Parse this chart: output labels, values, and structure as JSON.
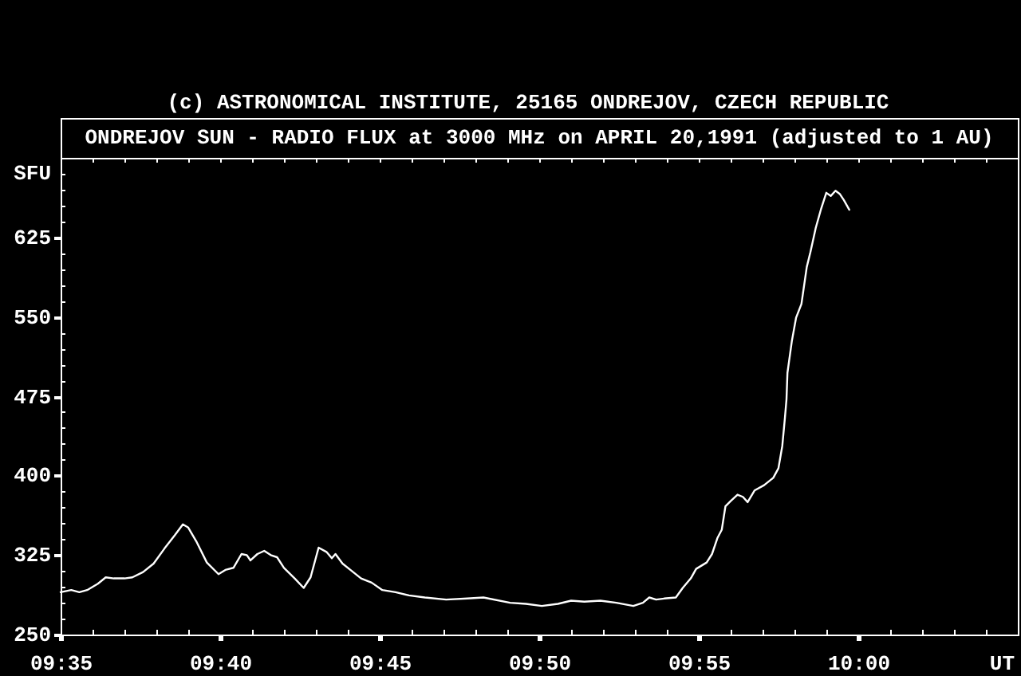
{
  "chart_data": {
    "type": "line",
    "title": "ONDREJOV SUN - RADIO FLUX at 3000 MHz on APRIL 20,1991 (adjusted to 1 AU)",
    "annotations": [
      "(c) ASTRONOMICAL INSTITUTE, 25165 ONDREJOV, CZECH REPUBLIC"
    ],
    "xlabel": "UT",
    "ylabel": "SFU",
    "color": "#ffffff",
    "x": [
      9.583333,
      9.5889,
      9.5931,
      9.5972,
      9.6028,
      9.6069,
      9.6111,
      9.6167,
      9.6208,
      9.6264,
      9.6319,
      9.6375,
      9.6431,
      9.6472,
      9.65,
      9.6542,
      9.6597,
      9.6658,
      9.6694,
      9.6736,
      9.6778,
      9.6806,
      9.6825,
      9.6861,
      9.6897,
      9.6931,
      9.6964,
      9.7,
      9.7056,
      9.7103,
      9.7139,
      9.7181,
      9.7222,
      9.725,
      9.7269,
      9.7306,
      9.7347,
      9.7403,
      9.7458,
      9.7514,
      9.7583,
      9.7653,
      9.7736,
      9.7847,
      9.7958,
      9.8042,
      9.8181,
      9.8264,
      9.8347,
      9.8431,
      9.85,
      9.8569,
      9.8653,
      9.8736,
      9.8825,
      9.8875,
      9.8908,
      9.8944,
      9.8986,
      9.9047,
      9.9083,
      9.9125,
      9.9153,
      9.9208,
      9.9236,
      9.9264,
      9.9287,
      9.9306,
      9.9333,
      9.9369,
      9.9397,
      9.9422,
      9.9458,
      9.9508,
      9.9556,
      9.9583,
      9.9603,
      9.9617,
      9.9625,
      9.963,
      9.9653,
      9.9675,
      9.9703,
      9.9731,
      9.975,
      9.9778,
      9.9806,
      9.9833,
      9.9856,
      9.9881,
      9.9903,
      9.9925,
      9.9953
    ],
    "values": [
      290,
      292,
      290,
      292,
      298,
      304,
      303,
      303,
      304,
      309,
      317,
      331,
      344,
      354,
      351,
      338,
      318,
      307,
      311,
      313,
      326,
      325,
      320,
      326,
      329,
      325,
      323,
      313,
      303,
      294,
      304,
      332,
      328,
      322,
      326,
      317,
      311,
      303,
      299,
      292,
      290,
      287,
      285,
      283,
      284,
      285,
      280,
      279,
      277,
      279,
      282,
      281,
      282,
      280,
      277,
      280,
      285,
      283,
      284,
      285,
      294,
      303,
      312,
      318,
      326,
      341,
      349,
      371,
      376,
      382,
      380,
      375,
      386,
      391,
      398,
      407,
      428,
      455,
      472,
      497,
      527,
      549,
      562,
      597,
      611,
      634,
      652,
      667,
      664,
      669,
      666,
      660,
      651
    ],
    "xlim": [
      9.583333,
      10.083333
    ],
    "xticks": [
      {
        "value": 9.583333,
        "label": "09:35"
      },
      {
        "value": 9.6,
        "label": null
      },
      {
        "value": 9.616667,
        "label": null
      },
      {
        "value": 9.633333,
        "label": null
      },
      {
        "value": 9.65,
        "label": null
      },
      {
        "value": 9.666667,
        "label": "09:40"
      },
      {
        "value": 9.683333,
        "label": null
      },
      {
        "value": 9.7,
        "label": null
      },
      {
        "value": 9.716667,
        "label": null
      },
      {
        "value": 9.733333,
        "label": null
      },
      {
        "value": 9.75,
        "label": "09:45"
      },
      {
        "value": 9.766667,
        "label": null
      },
      {
        "value": 9.783333,
        "label": null
      },
      {
        "value": 9.8,
        "label": null
      },
      {
        "value": 9.816667,
        "label": null
      },
      {
        "value": 9.833333,
        "label": "09:50"
      },
      {
        "value": 9.85,
        "label": null
      },
      {
        "value": 9.866667,
        "label": null
      },
      {
        "value": 9.883333,
        "label": null
      },
      {
        "value": 9.9,
        "label": null
      },
      {
        "value": 9.916667,
        "label": "09:55"
      },
      {
        "value": 9.933333,
        "label": null
      },
      {
        "value": 9.95,
        "label": null
      },
      {
        "value": 9.966667,
        "label": null
      },
      {
        "value": 9.983333,
        "label": null
      },
      {
        "value": 10,
        "label": "10:00"
      },
      {
        "value": 10.016667,
        "label": null
      },
      {
        "value": 10.033333,
        "label": null
      },
      {
        "value": 10.05,
        "label": null
      },
      {
        "value": 10.066667,
        "label": null
      }
    ],
    "ylim": [
      250,
      700
    ],
    "yticks": [
      250,
      {
        "value": 265,
        "label": null
      },
      {
        "value": 280,
        "label": null
      },
      {
        "value": 295,
        "label": null
      },
      {
        "value": 310,
        "label": null
      },
      325,
      {
        "value": 340,
        "label": null
      },
      {
        "value": 355,
        "label": null
      },
      {
        "value": 370,
        "label": null
      },
      {
        "value": 385,
        "label": null
      },
      400,
      {
        "value": 415,
        "label": null
      },
      {
        "value": 430,
        "label": null
      },
      {
        "value": 445,
        "label": null
      },
      {
        "value": 460,
        "label": null
      },
      475,
      {
        "value": 490,
        "label": null
      },
      {
        "value": 505,
        "label": null
      },
      {
        "value": 520,
        "label": null
      },
      {
        "value": 535,
        "label": null
      },
      550,
      {
        "value": 565,
        "label": null
      },
      {
        "value": 580,
        "label": null
      },
      {
        "value": 595,
        "label": null
      },
      {
        "value": 610,
        "label": null
      },
      625,
      {
        "value": 640,
        "label": null
      },
      {
        "value": 655,
        "label": null
      },
      {
        "value": 670,
        "label": null
      },
      {
        "value": 685,
        "label": null
      }
    ]
  }
}
